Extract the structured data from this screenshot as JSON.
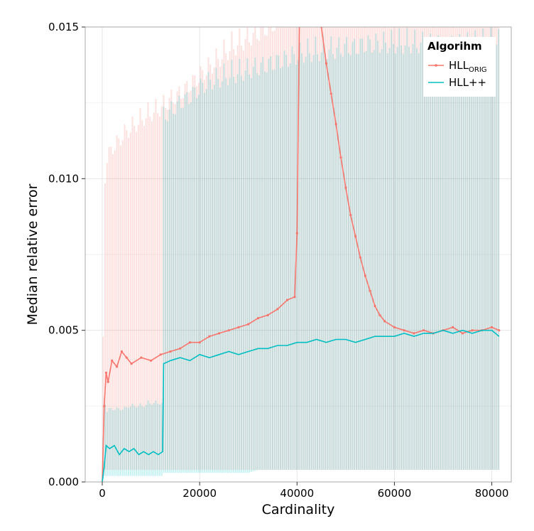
{
  "chart_data": {
    "type": "line",
    "xlabel": "Cardinality",
    "ylabel": "Median relative error",
    "xlim": [
      -3500,
      84000
    ],
    "ylim": [
      0,
      0.015
    ],
    "xticks": [
      {
        "value": 0,
        "label": "0"
      },
      {
        "value": 20000,
        "label": "20000"
      },
      {
        "value": 40000,
        "label": "40000"
      },
      {
        "value": 60000,
        "label": "60000"
      },
      {
        "value": 80000,
        "label": "80000"
      }
    ],
    "yticks": [
      {
        "value": 0,
        "label": "0.000"
      },
      {
        "value": 0.005,
        "label": "0.005"
      },
      {
        "value": 0.01,
        "label": "0.010"
      },
      {
        "value": 0.015,
        "label": "0.015"
      }
    ],
    "grid": true,
    "legend": {
      "title": "Algorihm",
      "placement": "top-right",
      "items": [
        {
          "series": "orig",
          "main": "HLL",
          "sub": "ORIG",
          "color": "#f8766d"
        },
        {
          "series": "pp",
          "main": "HLL++",
          "sub": "",
          "color": "#00bfc4"
        }
      ]
    },
    "series": [
      {
        "id": "orig",
        "color": "#f8766d",
        "band_color": "#f8766d",
        "markers": true,
        "x": [
          0,
          400,
          800,
          1200,
          2000,
          3000,
          4000,
          5000,
          6000,
          8000,
          10000,
          12000,
          14000,
          16000,
          18000,
          20000,
          22000,
          24000,
          26000,
          28000,
          30000,
          32000,
          34000,
          36000,
          38000,
          39500,
          40000,
          40500,
          42000,
          44000,
          45000,
          46000,
          47000,
          48000,
          49000,
          50000,
          51000,
          52000,
          53000,
          54000,
          55000,
          56000,
          57000,
          58000,
          60000,
          62000,
          64000,
          66000,
          68000,
          70000,
          72000,
          74000,
          76000,
          78000,
          80000,
          81500
        ],
        "y": [
          0.0,
          0.0025,
          0.0036,
          0.0033,
          0.004,
          0.0038,
          0.0043,
          0.0041,
          0.0039,
          0.0041,
          0.004,
          0.0042,
          0.0043,
          0.0044,
          0.0046,
          0.0046,
          0.0048,
          0.0049,
          0.005,
          0.0051,
          0.0052,
          0.0054,
          0.0055,
          0.0057,
          0.006,
          0.0061,
          0.0082,
          0.0152,
          0.016,
          0.0158,
          0.015,
          0.0138,
          0.0128,
          0.0118,
          0.0107,
          0.0097,
          0.0088,
          0.0081,
          0.0074,
          0.0068,
          0.0063,
          0.0058,
          0.0055,
          0.0053,
          0.0051,
          0.005,
          0.0049,
          0.005,
          0.0049,
          0.005,
          0.0051,
          0.0049,
          0.005,
          0.005,
          0.0051,
          0.005
        ],
        "upper": [
          0.0,
          0.0098,
          0.011,
          0.0112,
          0.0114,
          0.0116,
          0.0118,
          0.012,
          0.0121,
          0.0124,
          0.0126,
          0.0128,
          0.0131,
          0.0133,
          0.0136,
          0.0139,
          0.0142,
          0.0145,
          0.0148,
          0.015,
          0.0152,
          0.0154,
          0.0156,
          0.0158,
          0.016,
          0.016,
          0.016,
          0.016,
          0.016,
          0.016,
          0.016,
          0.016,
          0.016,
          0.016,
          0.016,
          0.016,
          0.016,
          0.016,
          0.016,
          0.016,
          0.016,
          0.016,
          0.016,
          0.016,
          0.016,
          0.016,
          0.016,
          0.016,
          0.016,
          0.016,
          0.016,
          0.016,
          0.016,
          0.016,
          0.016,
          0.016
        ],
        "lower": [
          0.0,
          0.0004,
          0.0004,
          0.0004,
          0.0004,
          0.0004,
          0.0004,
          0.0004,
          0.0004,
          0.0004,
          0.0004,
          0.0004,
          0.0004,
          0.0004,
          0.0004,
          0.0004,
          0.0004,
          0.0004,
          0.0004,
          0.0004,
          0.0004,
          0.0004,
          0.0004,
          0.0004,
          0.0004,
          0.0004,
          0.0004,
          0.0004,
          0.0004,
          0.0004,
          0.0004,
          0.0004,
          0.0004,
          0.0004,
          0.0004,
          0.0004,
          0.0004,
          0.0004,
          0.0004,
          0.0004,
          0.0004,
          0.0004,
          0.0004,
          0.0004,
          0.0004,
          0.0004,
          0.0004,
          0.0004,
          0.0004,
          0.0004,
          0.0004,
          0.0004,
          0.0004,
          0.0004,
          0.0004,
          0.0004
        ]
      },
      {
        "id": "pp",
        "color": "#00bfc4",
        "band_color": "#00bfc4",
        "markers": false,
        "x": [
          0,
          400,
          800,
          1500,
          2500,
          3500,
          4500,
          5500,
          6500,
          7500,
          8500,
          9500,
          10500,
          11500,
          12400,
          12600,
          14000,
          16000,
          18000,
          20000,
          22000,
          24000,
          26000,
          28000,
          30000,
          32000,
          34000,
          36000,
          38000,
          40000,
          42000,
          44000,
          46000,
          48000,
          50000,
          52000,
          54000,
          56000,
          58000,
          60000,
          62000,
          64000,
          66000,
          68000,
          70000,
          72000,
          74000,
          76000,
          78000,
          80000,
          81500
        ],
        "y": [
          0.0,
          0.0005,
          0.0012,
          0.0011,
          0.0012,
          0.0009,
          0.0011,
          0.001,
          0.0011,
          0.0009,
          0.001,
          0.0009,
          0.001,
          0.0009,
          0.001,
          0.0039,
          0.004,
          0.0041,
          0.004,
          0.0042,
          0.0041,
          0.0042,
          0.0043,
          0.0042,
          0.0043,
          0.0044,
          0.0044,
          0.0045,
          0.0045,
          0.0046,
          0.0046,
          0.0047,
          0.0046,
          0.0047,
          0.0047,
          0.0046,
          0.0047,
          0.0048,
          0.0048,
          0.0048,
          0.0049,
          0.0048,
          0.0049,
          0.0049,
          0.005,
          0.0049,
          0.005,
          0.0049,
          0.005,
          0.005,
          0.0048
        ],
        "upper": [
          0.0,
          0.003,
          0.0024,
          0.0025,
          0.0025,
          0.0025,
          0.0025,
          0.0026,
          0.0026,
          0.0026,
          0.0026,
          0.0027,
          0.0027,
          0.0027,
          0.0027,
          0.0125,
          0.0127,
          0.013,
          0.0132,
          0.0135,
          0.0137,
          0.0138,
          0.0139,
          0.014,
          0.0141,
          0.0142,
          0.0143,
          0.0144,
          0.0145,
          0.0146,
          0.0147,
          0.0147,
          0.0148,
          0.0148,
          0.0149,
          0.0149,
          0.015,
          0.015,
          0.015,
          0.015,
          0.015,
          0.015,
          0.015,
          0.015,
          0.015,
          0.015,
          0.015,
          0.015,
          0.015,
          0.015,
          0.015
        ],
        "lower": [
          0.0,
          0.0002,
          0.0002,
          0.0002,
          0.0002,
          0.0002,
          0.0002,
          0.0002,
          0.0002,
          0.0002,
          0.0002,
          0.0002,
          0.0002,
          0.0002,
          0.0002,
          0.0003,
          0.0003,
          0.0003,
          0.0003,
          0.0003,
          0.0003,
          0.0003,
          0.0003,
          0.0003,
          0.0003,
          0.0004,
          0.0004,
          0.0004,
          0.0004,
          0.0004,
          0.0004,
          0.0004,
          0.0004,
          0.0004,
          0.0004,
          0.0004,
          0.0004,
          0.0004,
          0.0004,
          0.0004,
          0.0004,
          0.0004,
          0.0004,
          0.0004,
          0.0004,
          0.0004,
          0.0004,
          0.0004,
          0.0004,
          0.0004,
          0.0004
        ]
      }
    ]
  }
}
